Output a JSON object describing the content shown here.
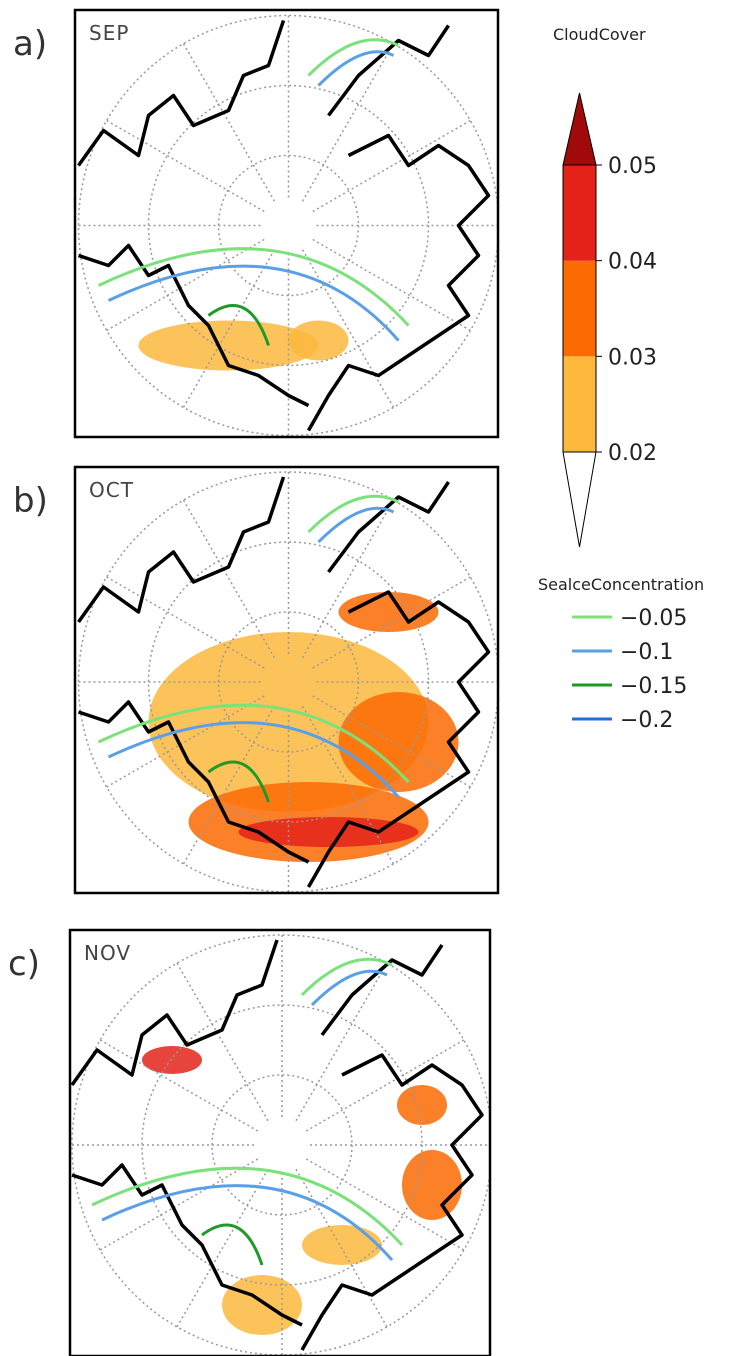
{
  "panels": [
    {
      "label": "a)",
      "month": "SEP"
    },
    {
      "label": "b)",
      "month": "OCT"
    },
    {
      "label": "c)",
      "month": "NOV"
    }
  ],
  "colorbar": {
    "title": "CloudCover",
    "ticks": [
      0.02,
      0.03,
      0.04,
      0.05
    ],
    "colors": [
      "#fdb93e",
      "#fc6a02",
      "#e3231a",
      "#a10a0a"
    ]
  },
  "legend": {
    "title": "SealceConcentration",
    "entries": [
      {
        "value": -0.05,
        "label": "−0.05",
        "color": "#7be27b"
      },
      {
        "value": -0.1,
        "label": "−0.1",
        "color": "#5aa0e6"
      },
      {
        "value": -0.15,
        "label": "−0.15",
        "color": "#1f9a2a"
      },
      {
        "value": -0.2,
        "label": "−0.2",
        "color": "#2a6ad8"
      }
    ]
  }
}
